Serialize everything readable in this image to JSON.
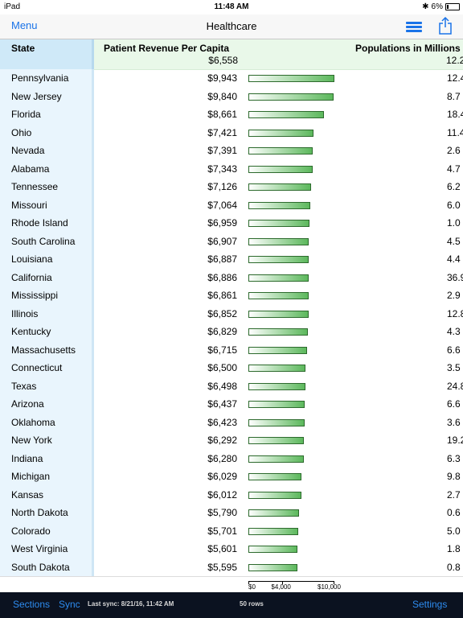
{
  "status_bar": {
    "device": "iPad",
    "time": "11:48 AM",
    "battery": "6%"
  },
  "nav": {
    "menu_label": "Menu",
    "title": "Healthcare",
    "list_icon": "list-icon",
    "share_icon": "share-icon"
  },
  "header": {
    "state_label": "State",
    "revenue_label": "Patient Revenue Per Capita",
    "revenue_total": "$6,558",
    "population_label": "Populations in Millions",
    "population_total": "12.2"
  },
  "colors": {
    "accent": "#1a73e8",
    "state_header_bg": "#cfe9f8",
    "main_header_bg": "#e9f8e9",
    "bar_fill": "#5cb85c",
    "toolbar_bg": "#0b1220"
  },
  "rows": [
    {
      "state": "Pennsylvania",
      "revenue": "$9,943",
      "revenue_value": 9943,
      "population": "12.4"
    },
    {
      "state": "New Jersey",
      "revenue": "$9,840",
      "revenue_value": 9840,
      "population": "8.7"
    },
    {
      "state": "Florida",
      "revenue": "$8,661",
      "revenue_value": 8661,
      "population": "18.4"
    },
    {
      "state": "Ohio",
      "revenue": "$7,421",
      "revenue_value": 7421,
      "population": "11.4"
    },
    {
      "state": "Nevada",
      "revenue": "$7,391",
      "revenue_value": 7391,
      "population": "2.6"
    },
    {
      "state": "Alabama",
      "revenue": "$7,343",
      "revenue_value": 7343,
      "population": "4.7"
    },
    {
      "state": "Tennessee",
      "revenue": "$7,126",
      "revenue_value": 7126,
      "population": "6.2"
    },
    {
      "state": "Missouri",
      "revenue": "$7,064",
      "revenue_value": 7064,
      "population": "6.0"
    },
    {
      "state": "Rhode Island",
      "revenue": "$6,959",
      "revenue_value": 6959,
      "population": "1.0"
    },
    {
      "state": "South Carolina",
      "revenue": "$6,907",
      "revenue_value": 6907,
      "population": "4.5"
    },
    {
      "state": "Louisiana",
      "revenue": "$6,887",
      "revenue_value": 6887,
      "population": "4.4"
    },
    {
      "state": "California",
      "revenue": "$6,886",
      "revenue_value": 6886,
      "population": "36.9"
    },
    {
      "state": "Mississippi",
      "revenue": "$6,861",
      "revenue_value": 6861,
      "population": "2.9"
    },
    {
      "state": "Illinois",
      "revenue": "$6,852",
      "revenue_value": 6852,
      "population": "12.8"
    },
    {
      "state": "Kentucky",
      "revenue": "$6,829",
      "revenue_value": 6829,
      "population": "4.3"
    },
    {
      "state": "Massachusetts",
      "revenue": "$6,715",
      "revenue_value": 6715,
      "population": "6.6"
    },
    {
      "state": "Connecticut",
      "revenue": "$6,500",
      "revenue_value": 6500,
      "population": "3.5"
    },
    {
      "state": "Texas",
      "revenue": "$6,498",
      "revenue_value": 6498,
      "population": "24.8"
    },
    {
      "state": "Arizona",
      "revenue": "$6,437",
      "revenue_value": 6437,
      "population": "6.6"
    },
    {
      "state": "Oklahoma",
      "revenue": "$6,423",
      "revenue_value": 6423,
      "population": "3.6"
    },
    {
      "state": "New York",
      "revenue": "$6,292",
      "revenue_value": 6292,
      "population": "19.2"
    },
    {
      "state": "Indiana",
      "revenue": "$6,280",
      "revenue_value": 6280,
      "population": "6.3"
    },
    {
      "state": "Michigan",
      "revenue": "$6,029",
      "revenue_value": 6029,
      "population": "9.8"
    },
    {
      "state": "Kansas",
      "revenue": "$6,012",
      "revenue_value": 6012,
      "population": "2.7"
    },
    {
      "state": "North Dakota",
      "revenue": "$5,790",
      "revenue_value": 5790,
      "population": "0.6"
    },
    {
      "state": "Colorado",
      "revenue": "$5,701",
      "revenue_value": 5701,
      "population": "5.0"
    },
    {
      "state": "West Virginia",
      "revenue": "$5,601",
      "revenue_value": 5601,
      "population": "1.8"
    },
    {
      "state": "South Dakota",
      "revenue": "$5,595",
      "revenue_value": 5595,
      "population": "0.8"
    }
  ],
  "axis": {
    "labels": [
      "$0",
      "$4,000",
      "$10,000"
    ],
    "values": [
      0,
      4000,
      10000
    ]
  },
  "bottom_bar": {
    "sections_label": "Sections",
    "sync_label": "Sync",
    "last_sync": "Last sync: 8/21/16, 11:42 AM",
    "row_count": "50 rows",
    "settings_label": "Settings"
  }
}
